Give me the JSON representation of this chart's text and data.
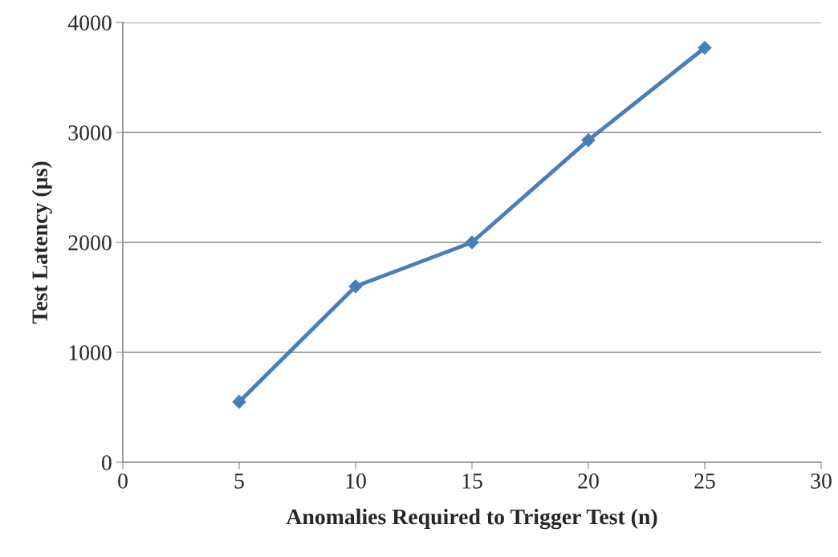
{
  "chart_data": {
    "type": "line",
    "xlabel": "Anomalies Required to Trigger Test (n)",
    "ylabel": "Test Latency (µs)",
    "x": [
      5,
      10,
      15,
      20,
      25
    ],
    "series": [
      {
        "color": "#4a7ebb",
        "values": [
          550,
          1600,
          2000,
          2930,
          3770
        ]
      }
    ],
    "xlim": [
      0,
      30
    ],
    "xticks": [
      0,
      5,
      10,
      15,
      20,
      25,
      30
    ],
    "ylim": [
      0,
      4000
    ],
    "yticks": [
      0,
      1000,
      2000,
      3000,
      4000
    ],
    "grid": "y",
    "marker": "diamond",
    "line_style": "solid"
  }
}
